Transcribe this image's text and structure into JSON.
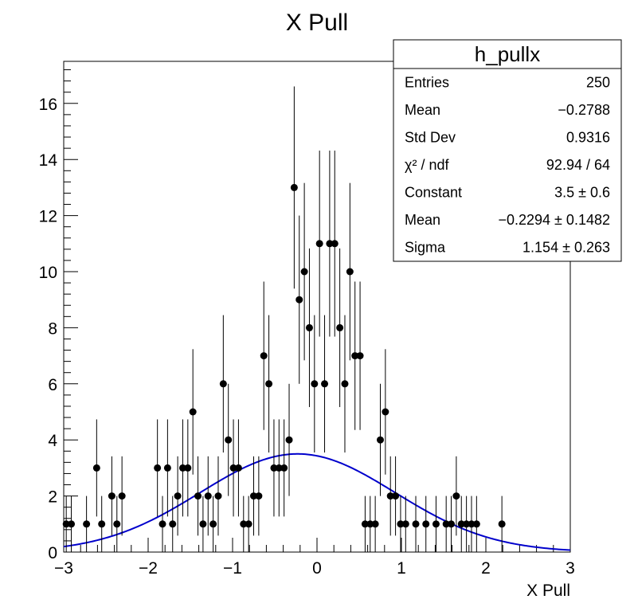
{
  "chart_data": {
    "type": "scatter",
    "title": "X Pull",
    "xlabel": "X Pull",
    "ylabel": "",
    "xlim": [
      -3,
      3
    ],
    "ylim": [
      0,
      17.5
    ],
    "x_ticks": [
      -3,
      -2,
      -1,
      0,
      1,
      2,
      3
    ],
    "x_tick_labels": [
      "−3",
      "−2",
      "−1",
      "0",
      "1",
      "2",
      "3"
    ],
    "y_ticks": [
      0,
      2,
      4,
      6,
      8,
      10,
      12,
      14,
      16
    ],
    "y_tick_labels": [
      "0",
      "2",
      "4",
      "6",
      "8",
      "10",
      "12",
      "14",
      "16"
    ],
    "bin_width": 0.06,
    "series": [
      {
        "type": "points-with-errors",
        "color": "#000000",
        "points": [
          {
            "x": -2.97,
            "y": 1
          },
          {
            "x": -2.91,
            "y": 1
          },
          {
            "x": -2.73,
            "y": 1
          },
          {
            "x": -2.61,
            "y": 3
          },
          {
            "x": -2.55,
            "y": 1
          },
          {
            "x": -2.43,
            "y": 2
          },
          {
            "x": -2.37,
            "y": 1
          },
          {
            "x": -2.31,
            "y": 2
          },
          {
            "x": -1.89,
            "y": 3
          },
          {
            "x": -1.83,
            "y": 1
          },
          {
            "x": -1.77,
            "y": 3
          },
          {
            "x": -1.71,
            "y": 1
          },
          {
            "x": -1.65,
            "y": 2
          },
          {
            "x": -1.59,
            "y": 3
          },
          {
            "x": -1.53,
            "y": 3
          },
          {
            "x": -1.47,
            "y": 5
          },
          {
            "x": -1.41,
            "y": 2
          },
          {
            "x": -1.35,
            "y": 1
          },
          {
            "x": -1.29,
            "y": 2
          },
          {
            "x": -1.23,
            "y": 1
          },
          {
            "x": -1.17,
            "y": 2
          },
          {
            "x": -1.11,
            "y": 6
          },
          {
            "x": -1.05,
            "y": 4
          },
          {
            "x": -0.99,
            "y": 3
          },
          {
            "x": -0.93,
            "y": 3
          },
          {
            "x": -0.87,
            "y": 1
          },
          {
            "x": -0.81,
            "y": 1
          },
          {
            "x": -0.75,
            "y": 2
          },
          {
            "x": -0.69,
            "y": 2
          },
          {
            "x": -0.63,
            "y": 7
          },
          {
            "x": -0.57,
            "y": 6
          },
          {
            "x": -0.51,
            "y": 3
          },
          {
            "x": -0.45,
            "y": 3
          },
          {
            "x": -0.39,
            "y": 3
          },
          {
            "x": -0.33,
            "y": 4
          },
          {
            "x": -0.27,
            "y": 13
          },
          {
            "x": -0.21,
            "y": 9
          },
          {
            "x": -0.15,
            "y": 10
          },
          {
            "x": -0.09,
            "y": 8
          },
          {
            "x": -0.03,
            "y": 6
          },
          {
            "x": 0.03,
            "y": 11
          },
          {
            "x": 0.09,
            "y": 6
          },
          {
            "x": 0.15,
            "y": 11
          },
          {
            "x": 0.21,
            "y": 11
          },
          {
            "x": 0.27,
            "y": 8
          },
          {
            "x": 0.33,
            "y": 6
          },
          {
            "x": 0.39,
            "y": 10
          },
          {
            "x": 0.45,
            "y": 7
          },
          {
            "x": 0.51,
            "y": 7
          },
          {
            "x": 0.57,
            "y": 1
          },
          {
            "x": 0.63,
            "y": 1
          },
          {
            "x": 0.69,
            "y": 1
          },
          {
            "x": 0.75,
            "y": 4
          },
          {
            "x": 0.81,
            "y": 5
          },
          {
            "x": 0.87,
            "y": 2
          },
          {
            "x": 0.93,
            "y": 2
          },
          {
            "x": 0.99,
            "y": 1
          },
          {
            "x": 1.05,
            "y": 1
          },
          {
            "x": 1.17,
            "y": 1
          },
          {
            "x": 1.29,
            "y": 1
          },
          {
            "x": 1.41,
            "y": 1
          },
          {
            "x": 1.53,
            "y": 1
          },
          {
            "x": 1.59,
            "y": 1
          },
          {
            "x": 1.65,
            "y": 2
          },
          {
            "x": 1.71,
            "y": 1
          },
          {
            "x": 1.77,
            "y": 1
          },
          {
            "x": 1.83,
            "y": 1
          },
          {
            "x": 1.89,
            "y": 1
          },
          {
            "x": 2.19,
            "y": 1
          }
        ]
      },
      {
        "type": "gaussian-fit",
        "color": "#0000cc",
        "constant": 3.5,
        "mean": -0.2294,
        "sigma": 1.154,
        "x_range": [
          -3,
          3
        ]
      }
    ],
    "legend_position": "top-right",
    "grid": false
  },
  "stats_box": {
    "title": "h_pullx",
    "rows": [
      {
        "label": "Entries",
        "value": "250"
      },
      {
        "label": "Mean",
        "value": "−0.2788"
      },
      {
        "label": "Std Dev",
        "value": "0.9316"
      },
      {
        "label": "χ² / ndf",
        "value": "92.94 / 64"
      },
      {
        "label": "Constant",
        "value": "3.5 ± 0.6"
      },
      {
        "label": "Mean",
        "value": "−0.2294 ± 0.1482"
      },
      {
        "label": "Sigma",
        "value": "1.154 ± 0.263"
      }
    ]
  }
}
